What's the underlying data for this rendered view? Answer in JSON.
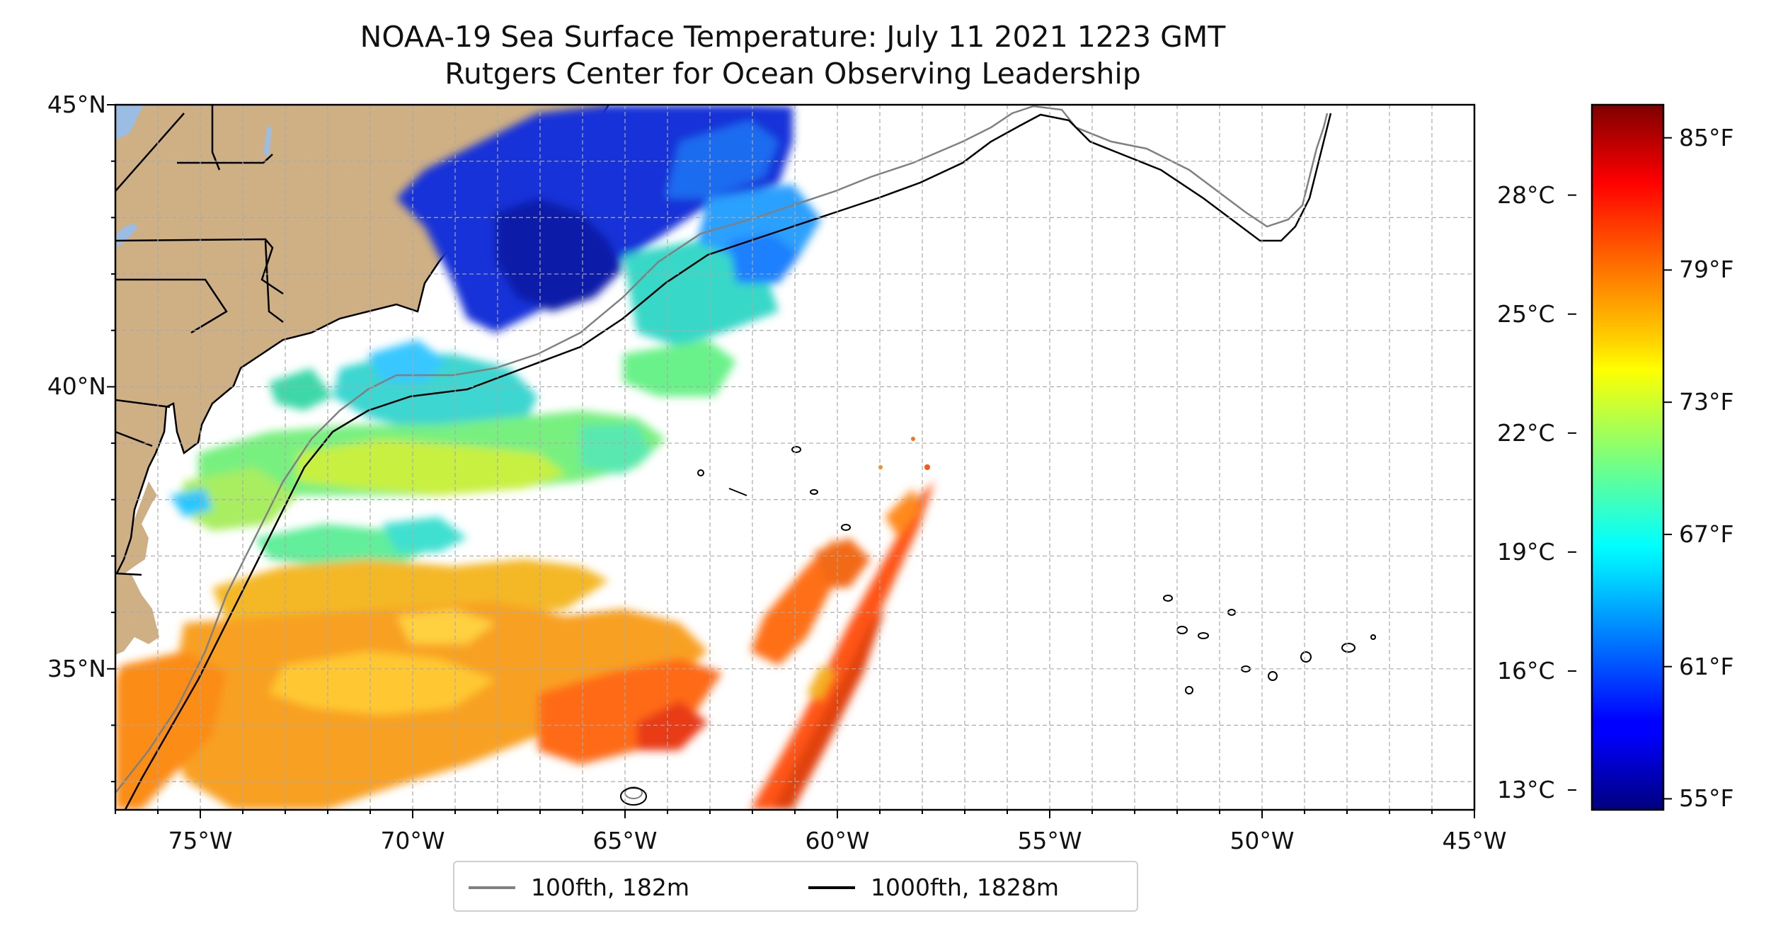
{
  "title": {
    "line1": "NOAA-19 Sea Surface Temperature: July 11 2021 1223 GMT",
    "line2": "Rutgers Center for Ocean Observing Leadership"
  },
  "map": {
    "lon_range": [
      -77,
      -45
    ],
    "lat_range": [
      32.5,
      45
    ],
    "x_ticks": [
      {
        "lon": -75,
        "label": "75°W"
      },
      {
        "lon": -70,
        "label": "70°W"
      },
      {
        "lon": -65,
        "label": "65°W"
      },
      {
        "lon": -60,
        "label": "60°W"
      },
      {
        "lon": -55,
        "label": "55°W"
      },
      {
        "lon": -50,
        "label": "50°W"
      },
      {
        "lon": -45,
        "label": "45°W"
      }
    ],
    "y_ticks": [
      {
        "lat": 45,
        "label": "45°N"
      },
      {
        "lat": 40,
        "label": "40°N"
      },
      {
        "lat": 35,
        "label": "35°N"
      }
    ],
    "gridlines": true,
    "land_color": "#cfb084",
    "lake_color": "#9bbde3"
  },
  "colorbar": {
    "colormap": "jet",
    "celsius_ticks": [
      {
        "value": 13,
        "label": "13°C"
      },
      {
        "value": 16,
        "label": "16°C"
      },
      {
        "value": 19,
        "label": "19°C"
      },
      {
        "value": 22,
        "label": "22°C"
      },
      {
        "value": 25,
        "label": "25°C"
      },
      {
        "value": 28,
        "label": "28°C"
      }
    ],
    "fahrenheit_ticks": [
      {
        "value": 55,
        "label": "55°F"
      },
      {
        "value": 61,
        "label": "61°F"
      },
      {
        "value": 67,
        "label": "67°F"
      },
      {
        "value": 73,
        "label": "73°F"
      },
      {
        "value": 79,
        "label": "79°F"
      },
      {
        "value": 85,
        "label": "85°F"
      }
    ],
    "f_range": [
      54.5,
      86.5
    ]
  },
  "legend": {
    "items": [
      {
        "label": "100fth, 182m",
        "color": "#808080"
      },
      {
        "label": "1000fth, 1828m",
        "color": "#000000"
      }
    ]
  }
}
